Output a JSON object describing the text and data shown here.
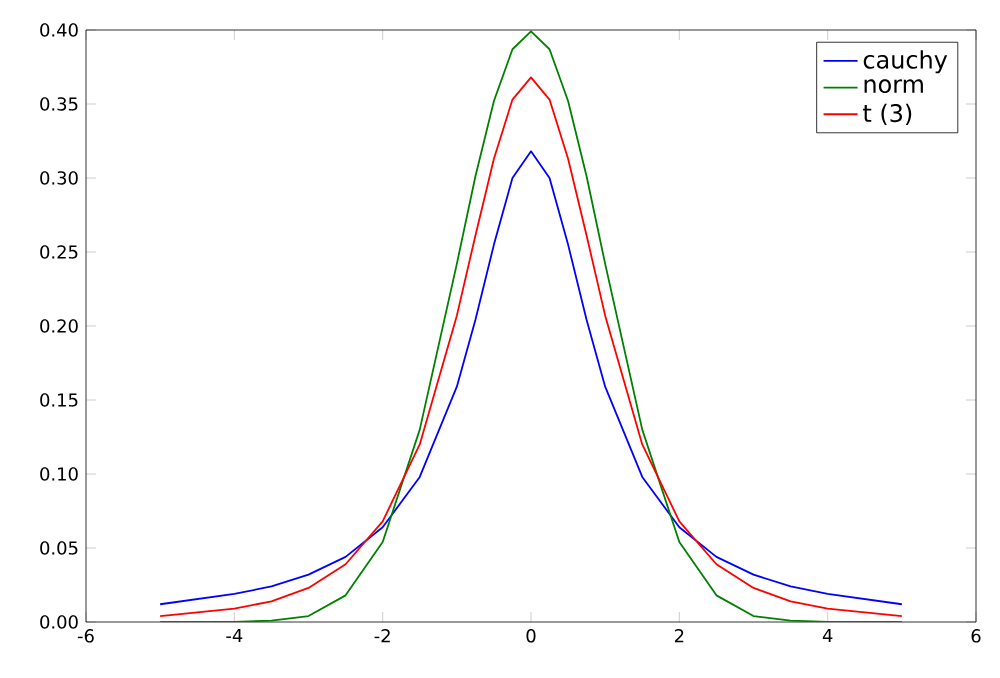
{
  "chart_data": {
    "type": "line",
    "x": [
      -5,
      -4,
      -3.5,
      -3,
      -2.5,
      -2,
      -1.5,
      -1,
      -0.75,
      -0.5,
      -0.25,
      0,
      0.25,
      0.5,
      0.75,
      1,
      1.5,
      2,
      2.5,
      3,
      3.5,
      4,
      5
    ],
    "series": [
      {
        "name": "cauchy",
        "color": "#0000ff",
        "values": [
          0.012,
          0.019,
          0.024,
          0.032,
          0.044,
          0.064,
          0.098,
          0.159,
          0.204,
          0.255,
          0.3,
          0.318,
          0.3,
          0.255,
          0.204,
          0.159,
          0.098,
          0.064,
          0.044,
          0.032,
          0.024,
          0.019,
          0.012
        ]
      },
      {
        "name": "norm",
        "color": "#008000",
        "values": [
          0.0,
          0.0,
          0.001,
          0.004,
          0.018,
          0.054,
          0.13,
          0.242,
          0.301,
          0.352,
          0.387,
          0.399,
          0.387,
          0.352,
          0.301,
          0.242,
          0.13,
          0.054,
          0.018,
          0.004,
          0.001,
          0.0,
          0.0
        ]
      },
      {
        "name": "t (3)",
        "color": "#ff0000",
        "values": [
          0.004,
          0.009,
          0.014,
          0.023,
          0.039,
          0.068,
          0.12,
          0.207,
          0.261,
          0.313,
          0.353,
          0.368,
          0.353,
          0.313,
          0.261,
          0.207,
          0.12,
          0.068,
          0.039,
          0.023,
          0.014,
          0.009,
          0.004
        ]
      }
    ],
    "xlim": [
      -6,
      6
    ],
    "ylim": [
      0,
      0.4
    ],
    "xticks": [
      -6,
      -4,
      -2,
      0,
      2,
      4,
      6
    ],
    "yticks": [
      {
        "value": 0,
        "label": "0.00"
      },
      {
        "value": 0.05,
        "label": "0.05"
      },
      {
        "value": 0.1,
        "label": "0.10"
      },
      {
        "value": 0.15,
        "label": "0.15"
      },
      {
        "value": 0.2,
        "label": "0.20"
      },
      {
        "value": 0.25,
        "label": "0.25"
      },
      {
        "value": 0.3,
        "label": "0.30"
      },
      {
        "value": 0.35,
        "label": "0.35"
      },
      {
        "value": 0.4,
        "label": "0.40"
      }
    ],
    "legend": "top right",
    "line_style": "solid"
  }
}
